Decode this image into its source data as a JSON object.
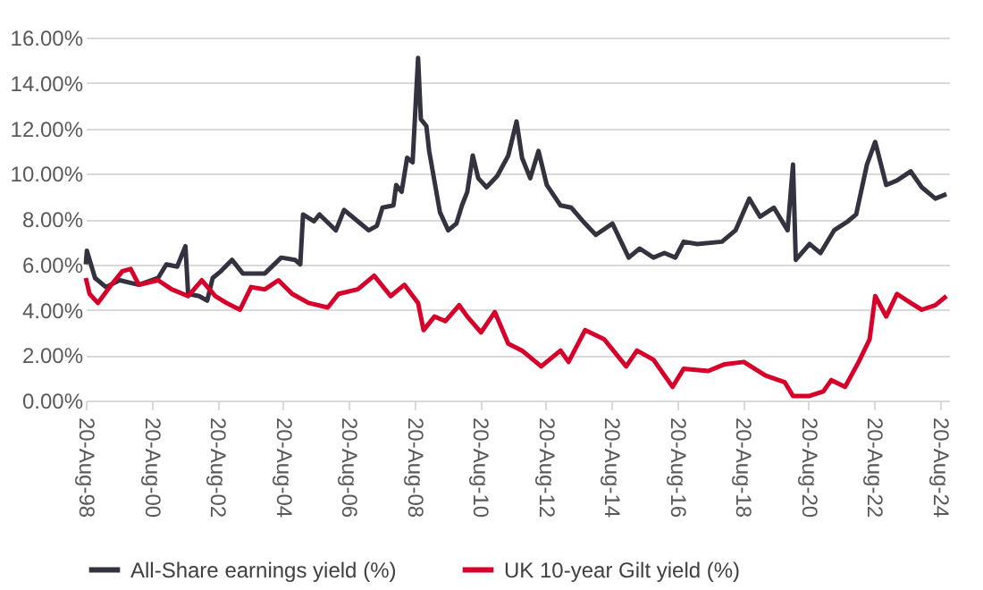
{
  "chart_data": {
    "type": "line",
    "xlim": [
      "1998-08-20",
      "2024-11-30"
    ],
    "xticks": [
      {
        "value": "1998-08-20",
        "label": "20-Aug-98"
      },
      {
        "value": "2000-08-20",
        "label": "20-Aug-00"
      },
      {
        "value": "2002-08-20",
        "label": "20-Aug-02"
      },
      {
        "value": "2004-08-20",
        "label": "20-Aug-04"
      },
      {
        "value": "2006-08-20",
        "label": "20-Aug-06"
      },
      {
        "value": "2008-08-20",
        "label": "20-Aug-08"
      },
      {
        "value": "2010-08-20",
        "label": "20-Aug-10"
      },
      {
        "value": "2012-08-20",
        "label": "20-Aug-12"
      },
      {
        "value": "2014-08-20",
        "label": "20-Aug-14"
      },
      {
        "value": "2016-08-20",
        "label": "20-Aug-16"
      },
      {
        "value": "2018-08-20",
        "label": "20-Aug-18"
      },
      {
        "value": "2020-08-20",
        "label": "20-Aug-20"
      },
      {
        "value": "2022-08-20",
        "label": "20-Aug-22"
      },
      {
        "value": "2024-08-20",
        "label": "20-Aug-24"
      }
    ],
    "ylim": [
      0,
      16
    ],
    "yticks": [
      {
        "value": 0,
        "label": "0.00%"
      },
      {
        "value": 2,
        "label": "2.00%"
      },
      {
        "value": 4,
        "label": "4.00%"
      },
      {
        "value": 6,
        "label": "6.00%"
      },
      {
        "value": 8,
        "label": "8.00%"
      },
      {
        "value": 10,
        "label": "10.00%"
      },
      {
        "value": 12,
        "label": "12.00%"
      },
      {
        "value": 14,
        "label": "14.00%"
      },
      {
        "value": 16,
        "label": "16.00%"
      }
    ],
    "grid": "y",
    "legend": "bottom",
    "marker": "none",
    "line_style": "solid",
    "series": [
      {
        "name": "All-Share earnings yield (%)",
        "color": "#33333f",
        "x": [
          "1998-08-20",
          "1998-09",
          "1998-12",
          "1999-04",
          "1999-09",
          "2000-04",
          "2000-11",
          "2001-02",
          "2001-06",
          "2001-09",
          "2001-10",
          "2002-02",
          "2002-05",
          "2002-07",
          "2002-10",
          "2003-02",
          "2003-06",
          "2004-02",
          "2004-08",
          "2005-01",
          "2005-03",
          "2005-04",
          "2005-08",
          "2005-10",
          "2006-04",
          "2006-07",
          "2006-10",
          "2007-04",
          "2007-07",
          "2007-09",
          "2008-01",
          "2008-02",
          "2008-04",
          "2008-06",
          "2008-08",
          "2008-10",
          "2008-11",
          "2009-01",
          "2009-02",
          "2009-06",
          "2009-09",
          "2009-12",
          "2010-02",
          "2010-04",
          "2010-06",
          "2010-08",
          "2010-11",
          "2011-03",
          "2011-07",
          "2011-10",
          "2011-12",
          "2012-03",
          "2012-06",
          "2012-09",
          "2013-02",
          "2013-06",
          "2013-11",
          "2014-03",
          "2014-09",
          "2015-03",
          "2015-07",
          "2015-12",
          "2016-04",
          "2016-08",
          "2016-11",
          "2017-04",
          "2018-01",
          "2018-06",
          "2018-11",
          "2019-03",
          "2019-08",
          "2020-01",
          "2020-03",
          "2020-04",
          "2020-09",
          "2021-01",
          "2021-06",
          "2021-11",
          "2022-02",
          "2022-06",
          "2022-09",
          "2023-01",
          "2023-05",
          "2023-10",
          "2024-02",
          "2024-07",
          "2024-11"
        ],
        "values": [
          6.0,
          6.6,
          5.4,
          5.0,
          5.3,
          5.1,
          5.4,
          6.0,
          5.9,
          6.8,
          4.7,
          4.6,
          4.4,
          5.4,
          5.7,
          6.2,
          5.6,
          5.6,
          6.3,
          6.2,
          6.0,
          8.2,
          7.9,
          8.2,
          7.5,
          8.4,
          8.1,
          7.5,
          7.7,
          8.5,
          8.6,
          9.5,
          9.2,
          10.7,
          10.5,
          15.1,
          12.4,
          12.1,
          11.0,
          8.3,
          7.5,
          7.8,
          8.6,
          9.2,
          10.8,
          9.8,
          9.4,
          9.9,
          10.8,
          12.3,
          10.7,
          9.8,
          11.0,
          9.5,
          8.6,
          8.5,
          7.8,
          7.3,
          7.8,
          6.3,
          6.7,
          6.3,
          6.5,
          6.3,
          7.0,
          6.9,
          7.0,
          7.5,
          8.9,
          8.1,
          8.5,
          7.5,
          10.4,
          6.2,
          6.9,
          6.5,
          7.5,
          7.9,
          8.2,
          10.4,
          11.4,
          9.5,
          9.7,
          10.1,
          9.4,
          8.9,
          9.1
        ]
      },
      {
        "name": "UK 10-year Gilt yield (%)",
        "color": "#d7002a",
        "x": [
          "1998-08-20",
          "1998-10",
          "1999-01",
          "1999-06",
          "1999-10",
          "2000-01",
          "2000-04",
          "2000-11",
          "2001-04",
          "2001-10",
          "2002-03",
          "2002-08",
          "2002-12",
          "2003-05",
          "2003-09",
          "2004-02",
          "2004-07",
          "2004-12",
          "2005-06",
          "2006-01",
          "2006-05",
          "2006-12",
          "2007-06",
          "2007-12",
          "2008-05",
          "2008-10",
          "2008-12",
          "2009-04",
          "2009-08",
          "2010-01",
          "2010-04",
          "2010-09",
          "2011-02",
          "2011-07",
          "2011-12",
          "2012-07",
          "2013-02",
          "2013-05",
          "2013-11",
          "2014-06",
          "2015-02",
          "2015-06",
          "2015-12",
          "2016-07",
          "2016-11",
          "2017-08",
          "2018-02",
          "2018-09",
          "2019-05",
          "2019-12",
          "2020-03",
          "2020-09",
          "2021-02",
          "2021-05",
          "2021-10",
          "2022-03",
          "2022-07",
          "2022-09",
          "2023-01",
          "2023-05",
          "2023-10",
          "2024-02",
          "2024-07",
          "2024-11"
        ],
        "values": [
          5.4,
          4.7,
          4.3,
          5.1,
          5.7,
          5.8,
          5.1,
          5.3,
          4.9,
          4.6,
          5.3,
          4.6,
          4.3,
          4.0,
          5.0,
          4.9,
          5.3,
          4.7,
          4.3,
          4.1,
          4.7,
          4.9,
          5.5,
          4.6,
          5.1,
          4.3,
          3.1,
          3.7,
          3.5,
          4.2,
          3.7,
          3.0,
          3.9,
          2.5,
          2.2,
          1.5,
          2.2,
          1.7,
          3.1,
          2.7,
          1.5,
          2.2,
          1.8,
          0.6,
          1.4,
          1.3,
          1.6,
          1.7,
          1.1,
          0.8,
          0.2,
          0.2,
          0.4,
          0.9,
          0.6,
          1.7,
          2.7,
          4.6,
          3.7,
          4.7,
          4.3,
          4.0,
          4.2,
          4.6
        ]
      }
    ]
  }
}
